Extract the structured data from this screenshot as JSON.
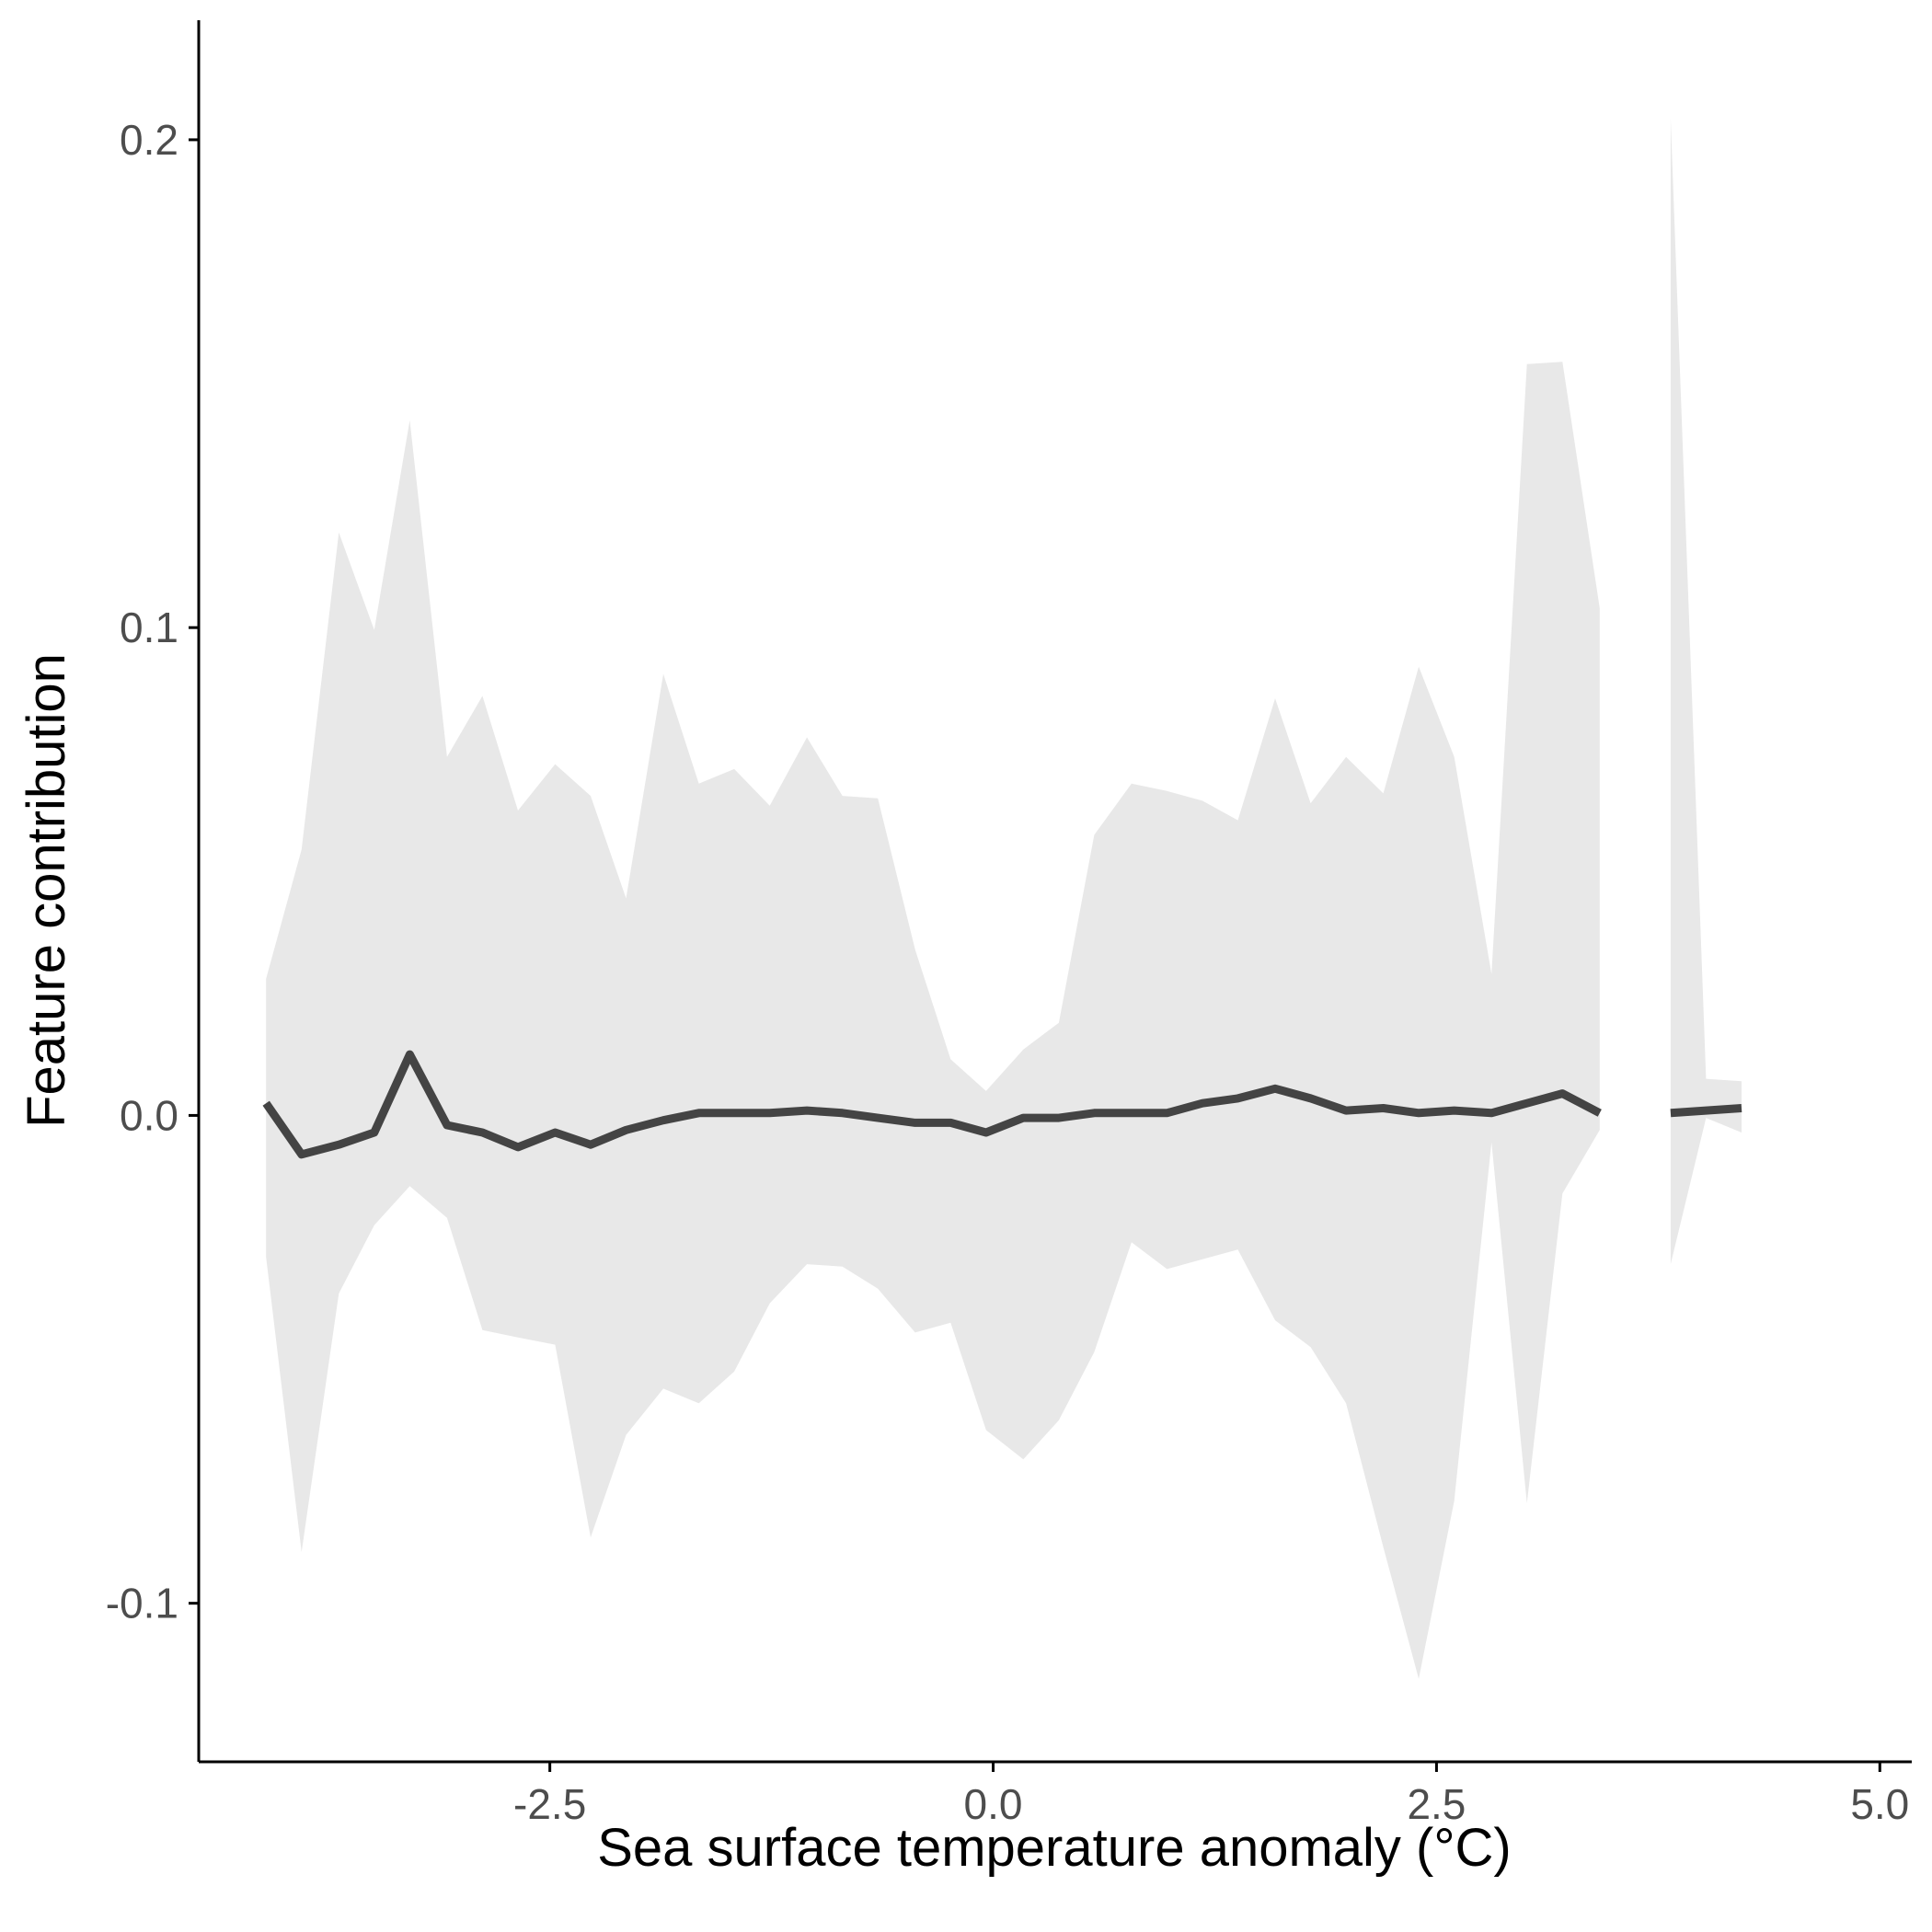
{
  "chart_data": {
    "type": "line",
    "title": "",
    "xlabel": "Sea surface temperature anomaly (°C)",
    "ylabel": "Feature contribution",
    "xlim": [
      -4.48,
      5.18
    ],
    "ylim": [
      -0.1325,
      0.2245
    ],
    "x_ticks": [
      -2.5,
      0.0,
      2.5,
      5.0
    ],
    "x_tick_labels": [
      "-2.5",
      "0.0",
      "2.5",
      "5.0"
    ],
    "y_ticks": [
      -0.1,
      0.0,
      0.1,
      0.2
    ],
    "y_tick_labels": [
      "-0.1",
      "0.0",
      "0.1",
      "0.2"
    ],
    "grid": false,
    "legend": "none",
    "colors": {
      "line": "#444444",
      "band": "#e8e8e8",
      "axis": "#000000"
    },
    "band_segments": [
      {
        "x": [
          -4.1,
          -3.9,
          -3.69,
          -3.49,
          -3.29,
          -3.08,
          -2.88,
          -2.68,
          -2.47,
          -2.27,
          -2.07,
          -1.86,
          -1.66,
          -1.46,
          -1.26,
          -1.05,
          -0.85,
          -0.65,
          -0.44,
          -0.24,
          -0.04,
          0.17,
          0.37,
          0.57,
          0.78,
          0.98,
          1.18,
          1.38,
          1.59,
          1.79,
          1.99,
          2.2,
          2.4,
          2.6,
          2.81,
          3.01,
          3.21,
          3.42
        ],
        "upper": [
          0.028,
          0.0545,
          0.1195,
          0.0995,
          0.1425,
          0.0735,
          0.086,
          0.0625,
          0.072,
          0.0655,
          0.0445,
          0.0905,
          0.068,
          0.071,
          0.0635,
          0.0775,
          0.0655,
          0.065,
          0.034,
          0.0115,
          0.005,
          0.0135,
          0.019,
          0.0575,
          0.068,
          0.0665,
          0.0645,
          0.0605,
          0.0855,
          0.064,
          0.0735,
          0.066,
          0.092,
          0.0735,
          0.029,
          0.154,
          0.1545,
          0.104
        ],
        "lower": [
          -0.029,
          -0.0895,
          -0.0365,
          -0.0225,
          -0.0145,
          -0.021,
          -0.044,
          -0.0455,
          -0.047,
          -0.0865,
          -0.0655,
          -0.056,
          -0.059,
          -0.0525,
          -0.0385,
          -0.0305,
          -0.031,
          -0.0355,
          -0.0445,
          -0.0425,
          -0.0645,
          -0.0705,
          -0.0625,
          -0.0485,
          -0.026,
          -0.0315,
          -0.0295,
          -0.0275,
          -0.042,
          -0.0475,
          -0.059,
          -0.0885,
          -0.1155,
          -0.079,
          -0.0055,
          -0.0795,
          -0.016,
          -0.003
        ]
      },
      {
        "x": [
          3.82,
          4.02,
          4.22
        ],
        "upper": [
          0.2045,
          0.0075,
          0.007
        ],
        "lower": [
          -0.0305,
          -0.0005,
          -0.0035
        ]
      }
    ],
    "series": [
      {
        "segments": [
          {
            "x": [
              -4.1,
              -3.9,
              -3.69,
              -3.49,
              -3.29,
              -3.08,
              -2.88,
              -2.68,
              -2.47,
              -2.27,
              -2.07,
              -1.86,
              -1.66,
              -1.46,
              -1.26,
              -1.05,
              -0.85,
              -0.65,
              -0.44,
              -0.24,
              -0.04,
              0.17,
              0.37,
              0.57,
              0.78,
              0.98,
              1.18,
              1.38,
              1.59,
              1.79,
              1.99,
              2.2,
              2.4,
              2.6,
              2.81,
              3.01,
              3.21,
              3.42
            ],
            "y": [
              0.0025,
              -0.008,
              -0.006,
              -0.0035,
              0.0125,
              -0.002,
              -0.0035,
              -0.0065,
              -0.0035,
              -0.006,
              -0.003,
              -0.001,
              0.0005,
              0.0005,
              0.0005,
              0.001,
              0.0005,
              -0.0005,
              -0.0015,
              -0.0015,
              -0.0035,
              -0.0005,
              -0.0005,
              0.0005,
              0.0005,
              0.0005,
              0.0025,
              0.0035,
              0.0055,
              0.0035,
              0.001,
              0.0015,
              0.0005,
              0.001,
              0.0005,
              0.0025,
              0.0045,
              0.0005
            ]
          },
          {
            "x": [
              3.82,
              4.02,
              4.22
            ],
            "y": [
              0.0005,
              0.001,
              0.0015
            ]
          }
        ]
      }
    ]
  }
}
